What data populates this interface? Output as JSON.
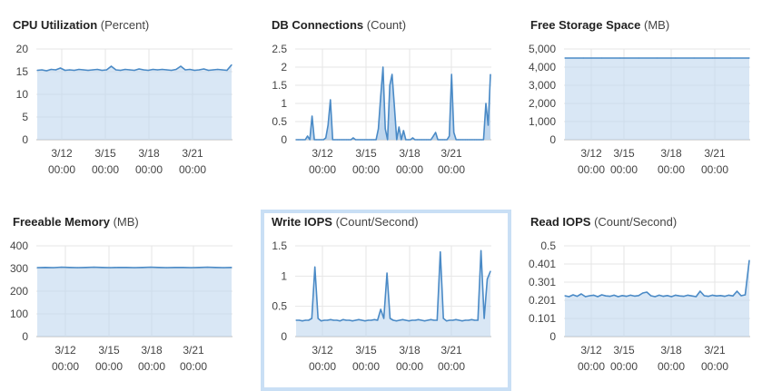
{
  "colors": {
    "line": "#4a8ac6",
    "fill": "#b9d3ec",
    "grid": "#e6e6e6",
    "axis": "#bbbbbb",
    "selected_border": "#c9dff5"
  },
  "x_ticks": [
    {
      "date": "3/12",
      "time": "00:00"
    },
    {
      "date": "3/15",
      "time": "00:00"
    },
    {
      "date": "3/18",
      "time": "00:00"
    },
    {
      "date": "3/21",
      "time": "00:00"
    }
  ],
  "panels": [
    {
      "id": "cpu",
      "title": "CPU Utilization",
      "unit": "(Percent)",
      "selected": false,
      "chart_data": {
        "type": "line",
        "title": "CPU Utilization (Percent)",
        "ylim": [
          0,
          20
        ],
        "y_ticks": [
          "20",
          "15",
          "10",
          "5",
          "0"
        ],
        "values": [
          15.3,
          15.4,
          15.2,
          15.5,
          15.4,
          15.8,
          15.3,
          15.4,
          15.3,
          15.5,
          15.4,
          15.3,
          15.4,
          15.5,
          15.3,
          15.4,
          16.2,
          15.4,
          15.3,
          15.5,
          15.4,
          15.3,
          15.6,
          15.4,
          15.3,
          15.5,
          15.4,
          15.5,
          15.4,
          15.3,
          15.5,
          16.2,
          15.4,
          15.5,
          15.3,
          15.4,
          15.6,
          15.3,
          15.4,
          15.5,
          15.4,
          15.3,
          16.5
        ]
      }
    },
    {
      "id": "db",
      "title": "DB Connections",
      "unit": "(Count)",
      "selected": false,
      "chart_data": {
        "type": "area",
        "title": "DB Connections (Count)",
        "ylim": [
          0,
          2.5
        ],
        "y_ticks": [
          "2.5",
          "2",
          "1.5",
          "1",
          "0.5",
          "0"
        ],
        "values": [
          0,
          0,
          0,
          0,
          0,
          0.1,
          0,
          0.65,
          0,
          0,
          0,
          0,
          0,
          0.05,
          0.4,
          1.1,
          0,
          0,
          0,
          0,
          0,
          0,
          0,
          0,
          0,
          0.05,
          0,
          0,
          0,
          0,
          0,
          0,
          0,
          0,
          0,
          0,
          0.3,
          1.2,
          2,
          0.3,
          0,
          1.5,
          1.8,
          0.9,
          0,
          0.35,
          0,
          0.25,
          0,
          0,
          0,
          0.05,
          0,
          0,
          0,
          0,
          0,
          0,
          0,
          0,
          0.1,
          0.2,
          0,
          0,
          0,
          0,
          0,
          0.1,
          1.8,
          0.2,
          0,
          0,
          0,
          0,
          0,
          0,
          0,
          0,
          0,
          0,
          0,
          0,
          0,
          1,
          0.4,
          1.8
        ]
      }
    },
    {
      "id": "storage",
      "title": "Free Storage Space",
      "unit": "(MB)",
      "selected": false,
      "chart_data": {
        "type": "line",
        "title": "Free Storage Space (MB)",
        "ylim": [
          0,
          5000
        ],
        "y_ticks": [
          "5,000",
          "4,000",
          "3,000",
          "2,000",
          "1,000",
          "0"
        ],
        "values": [
          4500,
          4500,
          4500,
          4500,
          4500,
          4500,
          4500,
          4500,
          4500,
          4500,
          4500
        ]
      }
    },
    {
      "id": "memory",
      "title": "Freeable Memory",
      "unit": "(MB)",
      "selected": false,
      "chart_data": {
        "type": "line",
        "title": "Freeable Memory (MB)",
        "ylim": [
          0,
          400
        ],
        "y_ticks": [
          "400",
          "300",
          "200",
          "100",
          "0"
        ],
        "values": [
          304,
          305,
          304,
          306,
          305,
          304,
          305,
          306,
          305,
          304,
          305,
          305,
          304,
          305,
          306,
          305,
          304,
          305,
          305,
          304,
          305,
          306,
          305,
          304,
          305
        ]
      }
    },
    {
      "id": "write",
      "title": "Write IOPS",
      "unit": "(Count/Second)",
      "selected": true,
      "chart_data": {
        "type": "line",
        "title": "Write IOPS (Count/Second)",
        "ylim": [
          0,
          1.5
        ],
        "y_ticks": [
          "1.5",
          "1",
          "0.5",
          "0"
        ],
        "values": [
          0.27,
          0.27,
          0.26,
          0.27,
          0.27,
          0.3,
          1.15,
          0.3,
          0.26,
          0.27,
          0.27,
          0.28,
          0.27,
          0.27,
          0.26,
          0.28,
          0.27,
          0.27,
          0.26,
          0.27,
          0.28,
          0.27,
          0.26,
          0.27,
          0.27,
          0.28,
          0.27,
          0.45,
          0.3,
          1.05,
          0.3,
          0.27,
          0.26,
          0.27,
          0.28,
          0.27,
          0.26,
          0.27,
          0.27,
          0.28,
          0.27,
          0.26,
          0.27,
          0.28,
          0.27,
          0.27,
          1.4,
          0.3,
          0.26,
          0.27,
          0.27,
          0.28,
          0.27,
          0.26,
          0.27,
          0.27,
          0.28,
          0.27,
          0.27,
          1.42,
          0.3,
          0.95,
          1.08
        ]
      }
    },
    {
      "id": "read",
      "title": "Read IOPS",
      "unit": "(Count/Second)",
      "selected": false,
      "chart_data": {
        "type": "line",
        "title": "Read IOPS (Count/Second)",
        "ylim": [
          0,
          0.5
        ],
        "y_ticks": [
          "0.5",
          "0.401",
          "0.301",
          "0.201",
          "0.101",
          "0"
        ],
        "values": [
          0.225,
          0.22,
          0.23,
          0.222,
          0.235,
          0.22,
          0.225,
          0.228,
          0.22,
          0.23,
          0.224,
          0.222,
          0.228,
          0.22,
          0.226,
          0.222,
          0.228,
          0.223,
          0.226,
          0.24,
          0.245,
          0.225,
          0.22,
          0.228,
          0.222,
          0.226,
          0.22,
          0.228,
          0.224,
          0.222,
          0.228,
          0.224,
          0.22,
          0.25,
          0.225,
          0.222,
          0.228,
          0.224,
          0.226,
          0.222,
          0.228,
          0.224,
          0.25,
          0.225,
          0.23,
          0.42
        ]
      }
    }
  ]
}
